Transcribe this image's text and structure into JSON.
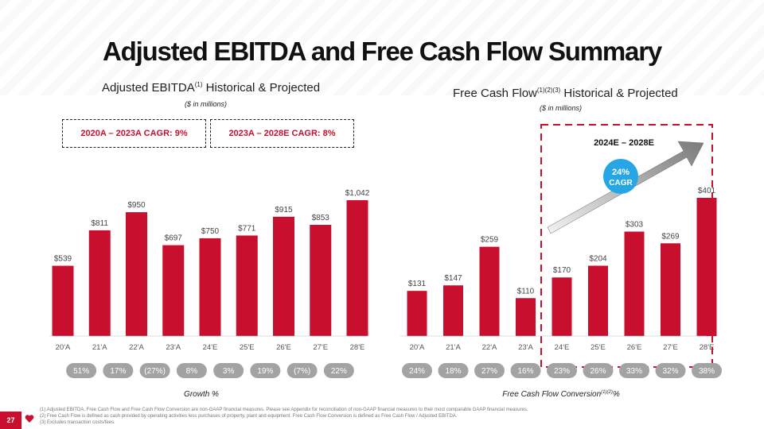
{
  "page": {
    "title": "Adjusted EBITDA and Free Cash Flow Summary",
    "page_number": "27",
    "logo_icon": "iheart-logo-icon",
    "accent_color": "#c8102e",
    "pill_color": "#a3a3a3"
  },
  "left_panel": {
    "subtitle_main": "Adjusted EBITDA",
    "subtitle_sup": "(1)",
    "subtitle_rest": " Historical & Projected",
    "units": "($ in millions)",
    "cagr1": "2020A – 2023A CAGR: 9%",
    "cagr2": "2023A – 2028E CAGR: 8%",
    "growth_label": "Growth %"
  },
  "right_panel": {
    "subtitle_main": "Free Cash Flow",
    "subtitle_sup": "(1)(2)(3)",
    "subtitle_rest": " Historical & Projected",
    "units": "($ in millions)",
    "period_label": "2024E – 2028E",
    "cagr_value": "24%",
    "cagr_word": "CAGR",
    "conversion_label_main": "Free Cash Flow Conversion",
    "conversion_label_sup": "(1)(2)",
    "conversion_label_rest": "%"
  },
  "chart_data": [
    {
      "type": "bar",
      "title": "Adjusted EBITDA Historical & Projected",
      "ylabel": "$ in millions",
      "categories": [
        "20'A",
        "21'A",
        "22'A",
        "23'A",
        "24'E",
        "25'E",
        "26'E",
        "27'E",
        "28'E"
      ],
      "values": [
        539,
        811,
        950,
        697,
        750,
        771,
        915,
        853,
        1042
      ],
      "labels": [
        "$539",
        "$811",
        "$950",
        "$697",
        "$750",
        "$771",
        "$915",
        "$853",
        "$1,042"
      ],
      "ylim": [
        0,
        1042
      ],
      "growth": [
        "51%",
        "17%",
        "(27%)",
        "8%",
        "3%",
        "19%",
        "(7%)",
        "22%"
      ]
    },
    {
      "type": "bar",
      "title": "Free Cash Flow Historical & Projected",
      "ylabel": "$ in millions",
      "categories": [
        "20'A",
        "21'A",
        "22'A",
        "23'A",
        "24'E",
        "25'E",
        "26'E",
        "27'E",
        "28'E"
      ],
      "values": [
        131,
        147,
        259,
        110,
        170,
        204,
        303,
        269,
        401
      ],
      "labels": [
        "$131",
        "$147",
        "$259",
        "$110",
        "$170",
        "$204",
        "$303",
        "$269",
        "$401"
      ],
      "ylim": [
        0,
        401
      ],
      "conversion": [
        "24%",
        "18%",
        "27%",
        "16%",
        "23%",
        "26%",
        "33%",
        "32%",
        "38%"
      ]
    }
  ],
  "footnotes": [
    "(1) Adjusted EBITDA, Free Cash Flow and Free Cash Flow Conversion are non-GAAP financial measures. Please see Appendix for reconciliation of non-GAAP financial measures to their most comparable GAAP financial measures.",
    "(2) Free Cash Flow is defined as cash provided by operating activities less purchases of property, plant and equipment. Free Cash Flow Conversion is defined as Free Cash Flow / Adjusted EBITDA.",
    "(3) Excludes transaction costs/fees."
  ]
}
